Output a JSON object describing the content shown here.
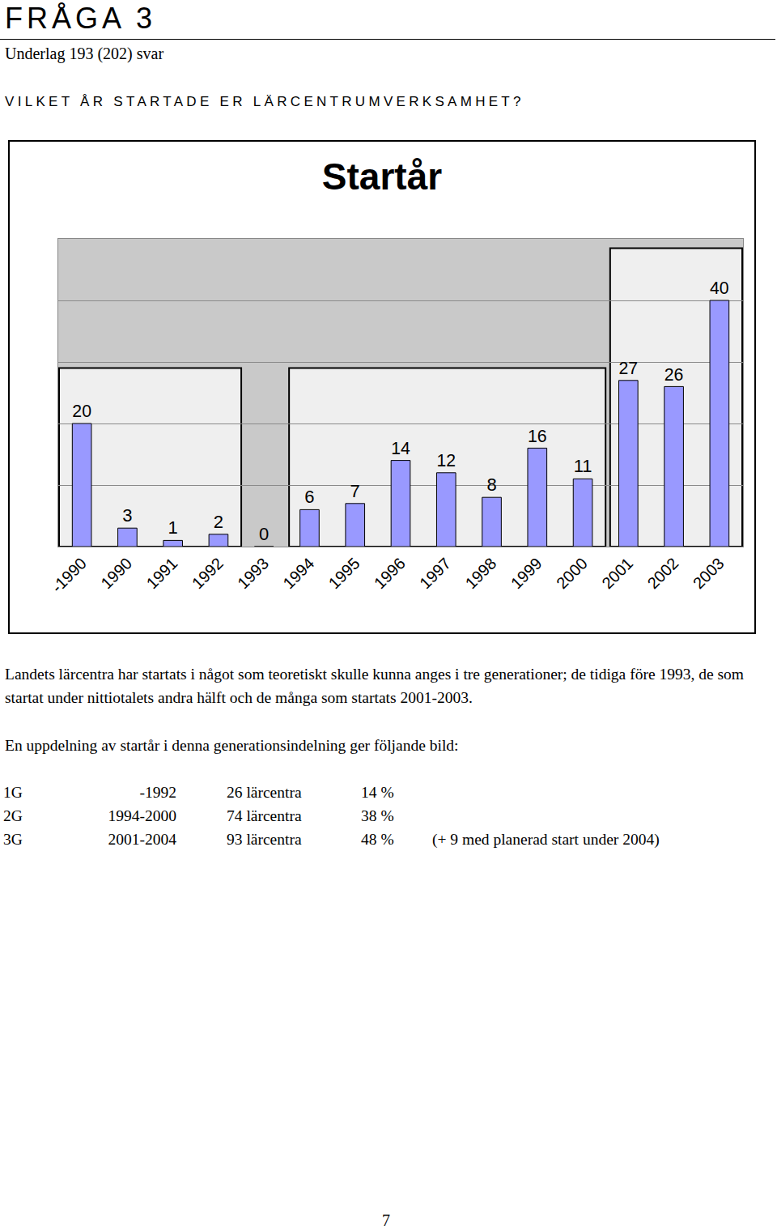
{
  "header": {
    "title": "FRÅGA 3",
    "subtitle": "Underlag 193 (202) svar",
    "question": "VILKET ÅR STARTADE ER LÄRCENTRUMVERKSAMHET?"
  },
  "chart_data": {
    "type": "bar",
    "title": "Startår",
    "categories": [
      "-1990",
      "1990",
      "1991",
      "1992",
      "1993",
      "1994",
      "1995",
      "1996",
      "1997",
      "1998",
      "1999",
      "2000",
      "2001",
      "2002",
      "2003"
    ],
    "values": [
      20,
      3,
      1,
      2,
      0,
      6,
      7,
      14,
      12,
      8,
      16,
      11,
      27,
      26,
      40
    ],
    "color": "#9999ff",
    "ylim": [
      0,
      50
    ],
    "yticks": [
      0,
      10,
      20,
      30,
      40,
      50
    ],
    "grid": true,
    "data_labels": true,
    "tick_labels": "x"
  },
  "paragraphs": [
    "Landets lärcentra har startats i något som teoretiskt skulle kunna anges i tre generationer; de tidiga före 1993, de som startat under nittiotalets andra hälft och de många som startats 2001-2003.",
    "En uppdelning av startår i denna generationsindelning ger följande bild:"
  ],
  "table": {
    "rows": [
      [
        "1G",
        "-1992",
        "26 lärcentra",
        "14 %"
      ],
      [
        "2G",
        "1994-2000",
        "74 lärcentra",
        "38 %"
      ],
      [
        "3G",
        "2001-2004",
        "93 lärcentra",
        "48 %",
        "(+ 9 med planerad start under 2004)"
      ]
    ]
  },
  "page_number": "7"
}
